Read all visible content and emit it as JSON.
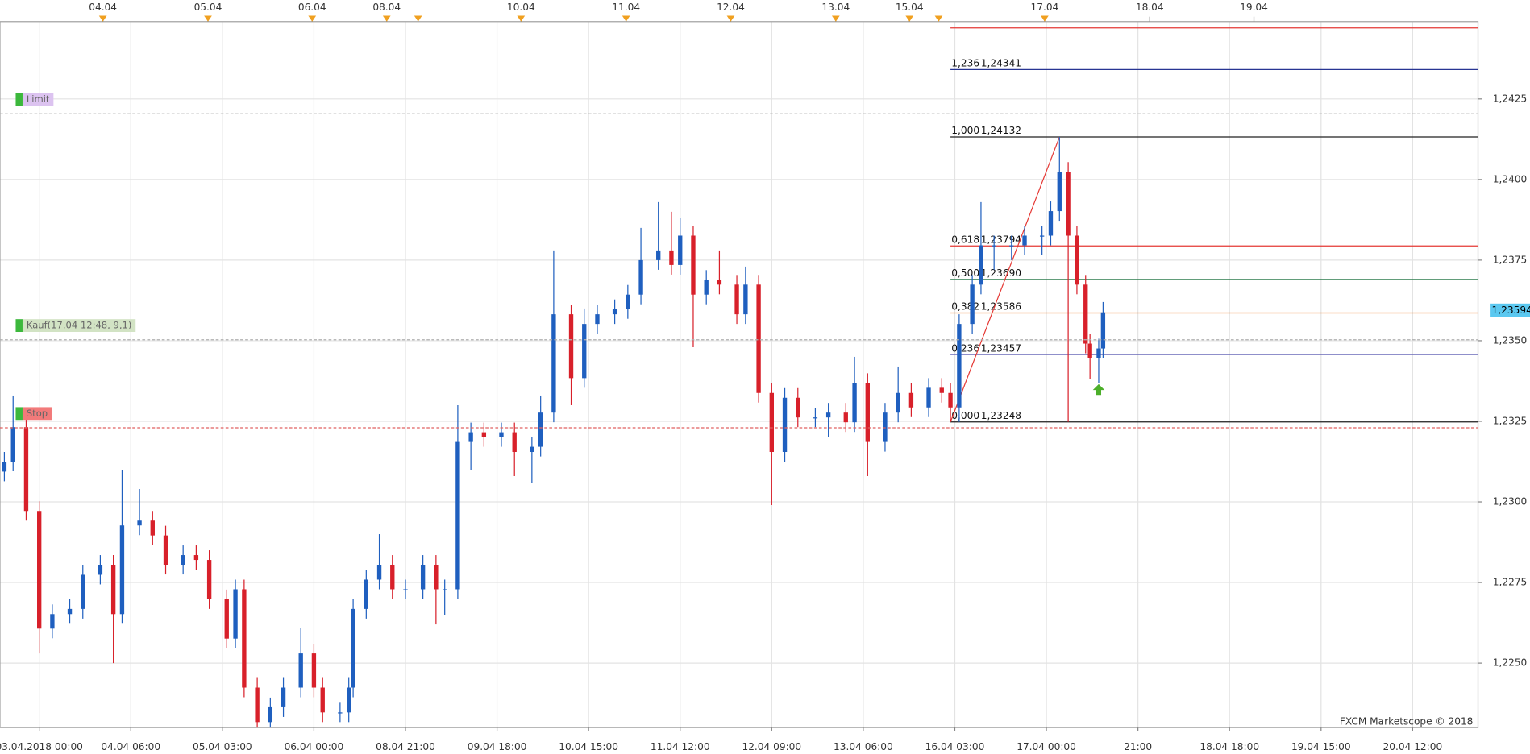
{
  "chart_data": {
    "type": "candlestick",
    "watermark": "FXCM Marketscope © 2018",
    "up_color": "#1f5fbf",
    "down_color": "#d8202a",
    "grid": true,
    "xlim": [
      0,
      339
    ],
    "ylim": [
      1.223,
      1.2449
    ],
    "yticks": [
      {
        "value": 1.225,
        "label": "1,2250"
      },
      {
        "value": 1.2275,
        "label": "1,2275"
      },
      {
        "value": 1.23,
        "label": "1,2300"
      },
      {
        "value": 1.2325,
        "label": "1,2325"
      },
      {
        "value": 1.235,
        "label": "1,2350"
      },
      {
        "value": 1.2375,
        "label": "1,2375"
      },
      {
        "value": 1.24,
        "label": "1,2400"
      },
      {
        "value": 1.2425,
        "label": "1,2425"
      }
    ],
    "xticks": [
      {
        "value": 9,
        "label": "03.04.2018 00:00"
      },
      {
        "value": 30,
        "label": "04.04 06:00"
      },
      {
        "value": 51,
        "label": "05.04 03:00"
      },
      {
        "value": 72,
        "label": "06.04 00:00"
      },
      {
        "value": 93,
        "label": "08.04 21:00"
      },
      {
        "value": 114,
        "label": "09.04 18:00"
      },
      {
        "value": 135,
        "label": "10.04 15:00"
      },
      {
        "value": 156,
        "label": "11.04 12:00"
      },
      {
        "value": 177,
        "label": "12.04 09:00"
      },
      {
        "value": 198,
        "label": "13.04 06:00"
      },
      {
        "value": 219,
        "label": "16.04 03:00"
      },
      {
        "value": 240,
        "label": "17.04 00:00"
      },
      {
        "value": 261,
        "label": "21:00"
      },
      {
        "value": 282,
        "label": "18.04 18:00"
      },
      {
        "value": 303,
        "label": "19.04 15:00"
      },
      {
        "value": 324,
        "label": "20.04 12:00"
      }
    ],
    "top_ticks": [
      {
        "value": 23.6,
        "label": "04.04"
      },
      {
        "value": 47.7,
        "label": "05.04"
      },
      {
        "value": 71.6,
        "label": "06.04"
      },
      {
        "value": 88.7,
        "label": "08.04"
      },
      {
        "value": 119.5,
        "label": "10.04"
      },
      {
        "value": 143.6,
        "label": "11.04"
      },
      {
        "value": 167.6,
        "label": "12.04"
      },
      {
        "value": 191.7,
        "label": "13.04"
      },
      {
        "value": 208.6,
        "label": "15.04"
      },
      {
        "value": 239.6,
        "label": "17.04"
      },
      {
        "value": 263.7,
        "label": "18.04"
      },
      {
        "value": 287.6,
        "label": "19.04"
      }
    ],
    "event_markers": [
      23.6,
      47.7,
      71.6,
      88.7,
      95.9,
      119.5,
      143.6,
      167.6,
      191.7,
      208.6,
      215.3,
      239.6
    ],
    "x": [
      1,
      3,
      6,
      9,
      12,
      16,
      19,
      23,
      26,
      28,
      32,
      35,
      38,
      42,
      45,
      48,
      52,
      54,
      56,
      59,
      62,
      65,
      69,
      72,
      74,
      78,
      80,
      81,
      84,
      87,
      90,
      93,
      97,
      100,
      102,
      105,
      108,
      111,
      115,
      118,
      122,
      124,
      127,
      131,
      134,
      137,
      141,
      144,
      147,
      151,
      154,
      156,
      159,
      162,
      165,
      169,
      171,
      174,
      177,
      180,
      183,
      187,
      190,
      194,
      196,
      199,
      203,
      206,
      209,
      213,
      216,
      218,
      220,
      223,
      225,
      228,
      232,
      235,
      239,
      241,
      243,
      245,
      247,
      249,
      250,
      252,
      253
    ],
    "open": [
      1.23094,
      1.23125,
      1.23232,
      1.22972,
      1.22607,
      1.22652,
      1.22668,
      1.22774,
      1.22805,
      1.22652,
      1.22927,
      1.22942,
      1.22896,
      1.22805,
      1.22835,
      1.2282,
      1.22698,
      1.22576,
      1.22729,
      1.22424,
      1.22317,
      1.22363,
      1.22424,
      1.2253,
      1.22424,
      1.22347,
      1.22347,
      1.22424,
      1.22668,
      1.22759,
      1.22805,
      1.22729,
      1.22729,
      1.22805,
      1.22729,
      1.22729,
      1.23186,
      1.23216,
      1.23201,
      1.23216,
      1.23155,
      1.23171,
      1.23277,
      1.23582,
      1.23384,
      1.23552,
      1.23582,
      1.23598,
      1.23643,
      1.2375,
      1.2378,
      1.23735,
      1.23826,
      1.23643,
      1.23689,
      1.23674,
      1.23582,
      1.23674,
      1.23338,
      1.23155,
      1.23323,
      1.23262,
      1.23262,
      1.23277,
      1.23247,
      1.23369,
      1.23186,
      1.23277,
      1.23338,
      1.23293,
      1.23354,
      1.23338,
      1.23293,
      1.23552,
      1.23674,
      1.23796,
      1.23796,
      1.23796,
      1.23826,
      1.23826,
      1.23902,
      1.24024,
      1.23826,
      1.23674,
      1.23491,
      1.23445,
      1.23476
    ],
    "high": [
      1.23155,
      1.2333,
      1.23262,
      1.23002,
      1.22682,
      1.22698,
      1.22804,
      1.22835,
      1.22835,
      1.231,
      1.2304,
      1.22972,
      1.22926,
      1.22865,
      1.22865,
      1.2285,
      1.22728,
      1.22759,
      1.22759,
      1.22454,
      1.22393,
      1.22454,
      1.2261,
      1.2256,
      1.22454,
      1.22377,
      1.22454,
      1.22698,
      1.22789,
      1.229,
      1.22835,
      1.22759,
      1.22835,
      1.22835,
      1.22759,
      1.233,
      1.23246,
      1.23246,
      1.23246,
      1.23246,
      1.23201,
      1.2333,
      1.2378,
      1.23612,
      1.236,
      1.23612,
      1.23628,
      1.23673,
      1.2385,
      1.2393,
      1.239,
      1.2388,
      1.23856,
      1.23719,
      1.2378,
      1.23704,
      1.2373,
      1.23704,
      1.23368,
      1.23353,
      1.23353,
      1.23292,
      1.23307,
      1.23307,
      1.2345,
      1.23399,
      1.23307,
      1.2342,
      1.23368,
      1.23384,
      1.23384,
      1.23368,
      1.23582,
      1.23704,
      1.2393,
      1.23826,
      1.23826,
      1.23856,
      1.23856,
      1.23932,
      1.24132,
      1.24054,
      1.23856,
      1.23704,
      1.23521,
      1.23506,
      1.2362
    ],
    "low": [
      1.23064,
      1.23095,
      1.22942,
      1.2253,
      1.22577,
      1.22622,
      1.22638,
      1.22744,
      1.225,
      1.22622,
      1.22897,
      1.22866,
      1.22775,
      1.22775,
      1.2279,
      1.22668,
      1.22546,
      1.22546,
      1.22394,
      1.223,
      1.223,
      1.22333,
      1.22394,
      1.22394,
      1.22317,
      1.22317,
      1.22317,
      1.22394,
      1.22638,
      1.22729,
      1.22699,
      1.22699,
      1.22699,
      1.2262,
      1.2265,
      1.22699,
      1.231,
      1.23171,
      1.23171,
      1.2308,
      1.2306,
      1.23141,
      1.23247,
      1.233,
      1.23354,
      1.23522,
      1.23552,
      1.23568,
      1.23613,
      1.2372,
      1.23705,
      1.23705,
      1.2348,
      1.23613,
      1.23644,
      1.23552,
      1.23552,
      1.23308,
      1.2299,
      1.23125,
      1.23232,
      1.23232,
      1.232,
      1.23217,
      1.23217,
      1.2308,
      1.23156,
      1.23247,
      1.23263,
      1.23263,
      1.23308,
      1.23248,
      1.23248,
      1.23522,
      1.23644,
      1.2372,
      1.2375,
      1.23766,
      1.23766,
      1.23796,
      1.23872,
      1.23248,
      1.23644,
      1.23461,
      1.2338,
      1.23369,
      1.23446
    ],
    "close": [
      1.23125,
      1.23232,
      1.22972,
      1.22607,
      1.22652,
      1.22668,
      1.22774,
      1.22805,
      1.22652,
      1.22927,
      1.22942,
      1.22896,
      1.22805,
      1.22835,
      1.2282,
      1.22698,
      1.22576,
      1.22729,
      1.22424,
      1.22317,
      1.22363,
      1.22424,
      1.2253,
      1.22424,
      1.22347,
      1.22347,
      1.22424,
      1.22668,
      1.22759,
      1.22805,
      1.22729,
      1.22729,
      1.22805,
      1.22729,
      1.22729,
      1.23186,
      1.23216,
      1.23201,
      1.23216,
      1.23155,
      1.23171,
      1.23277,
      1.23582,
      1.23384,
      1.23552,
      1.23582,
      1.23598,
      1.23643,
      1.2375,
      1.2378,
      1.23735,
      1.23826,
      1.23643,
      1.23689,
      1.23674,
      1.23582,
      1.23674,
      1.23338,
      1.23155,
      1.23323,
      1.23262,
      1.23262,
      1.23277,
      1.23247,
      1.23369,
      1.23186,
      1.23277,
      1.23338,
      1.23293,
      1.23354,
      1.23338,
      1.23293,
      1.23552,
      1.23674,
      1.23796,
      1.23796,
      1.23796,
      1.23826,
      1.23826,
      1.23902,
      1.24024,
      1.23826,
      1.23674,
      1.23491,
      1.23445,
      1.23476,
      1.23588
    ],
    "fib_anchor_x": [
      218,
      243
    ],
    "fib_trend_color": "#e53935",
    "fib_levels": [
      {
        "price": 1.2447,
        "color": "#e53935"
      },
      {
        "ratio": {
          "value": 1.236,
          "label": "1,236"
        },
        "price": {
          "value": 1.24341,
          "label": "1,24341"
        },
        "color": "#283593"
      },
      {
        "ratio": {
          "value": 1.0,
          "label": "1,000"
        },
        "price": {
          "value": 1.24132,
          "label": "1,24132"
        },
        "color": "#222222"
      },
      {
        "ratio": {
          "value": 0.618,
          "label": "0,618"
        },
        "price": {
          "value": 1.23794,
          "label": "1,23794"
        },
        "color": "#e53935"
      },
      {
        "ratio": {
          "value": 0.5,
          "label": "0,500"
        },
        "price": {
          "value": 1.2369,
          "label": "1,23690"
        },
        "color": "#2e7d4f"
      },
      {
        "ratio": {
          "value": 0.382,
          "label": "0,382"
        },
        "price": {
          "value": 1.23586,
          "label": "1,23586"
        },
        "color": "#f07820"
      },
      {
        "ratio": {
          "value": 0.236,
          "label": "0,236"
        },
        "price": {
          "value": 1.23457,
          "label": "1,23457"
        },
        "color": "#6a6ab8"
      },
      {
        "ratio": {
          "value": 0,
          "label": "0,000"
        },
        "price": {
          "value": 1.23248,
          "label": "1,23248"
        },
        "color": "#222222"
      }
    ],
    "orders": [
      {
        "label": "Limit",
        "price": 1.24204,
        "color": "#dcc3f0",
        "line_color": "#b0b0b0"
      },
      {
        "label": "Kauf(17.04 12:48, 9,1)",
        "price": 1.23503,
        "color": "#d2e3c4",
        "line_color": "#b0b0b0"
      },
      {
        "label": "Stop",
        "price": 1.2323,
        "color": "#f27a7a",
        "line_color": "#e06060"
      }
    ],
    "current_price": {
      "value": 1.23594,
      "label": "1,23594"
    },
    "buy_marker": {
      "x": 252,
      "price": 1.23347,
      "color": "#4caf2a"
    }
  }
}
